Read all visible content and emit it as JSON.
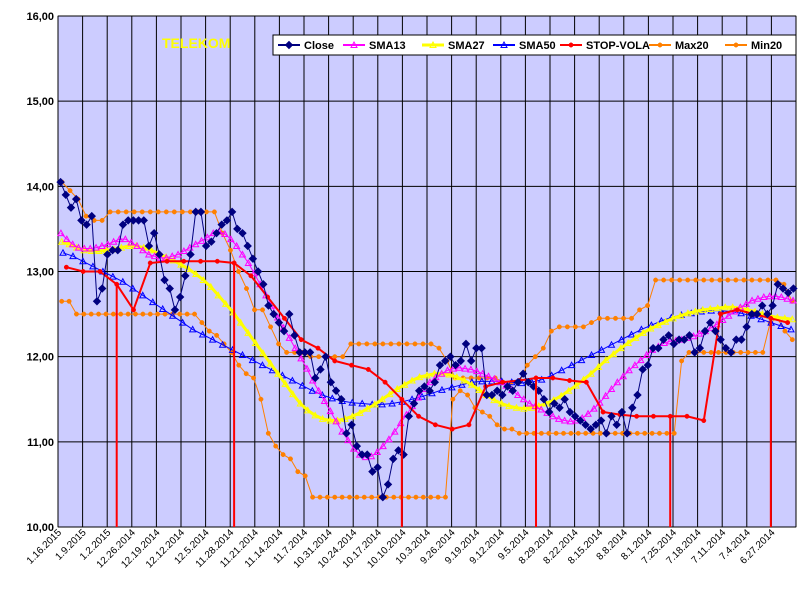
{
  "chart_data": {
    "type": "line",
    "title": "TELEKOM",
    "title_color": "#FFFF00",
    "plot_background": "#CCCCFF",
    "ylim": [
      10,
      16
    ],
    "y_ticks": [
      "10,00",
      "11,00",
      "12,00",
      "13,00",
      "14,00",
      "15,00",
      "16,00"
    ],
    "x_tick_labels": [
      "1.16.2015",
      "1.9.2015",
      "1.2.2015",
      "12.26.2014",
      "12.19.2014",
      "12.12.2014",
      "12.5.2014",
      "11.28.2014",
      "11.21.2014",
      "11.14.2014",
      "11.7.2014",
      "10.31.2014",
      "10.24.2014",
      "10.17.2014",
      "10.10.2014",
      "10.3.2014",
      "9.26.2014",
      "9.19.2014",
      "9.12.2014",
      "9.5.2014",
      "8.29.2014",
      "8.22.2014",
      "8.15.2014",
      "8.8.2014",
      "8.1.2014",
      "7.25.2014",
      "7.18.2014",
      "7.11.2014",
      "7.4.2014",
      "6.27.2014"
    ],
    "grid": true,
    "legend_position": "top-right",
    "series": [
      {
        "name": "Close",
        "color": "#000080",
        "marker": "diamond",
        "width": 1,
        "values": [
          14.05,
          13.9,
          13.75,
          13.85,
          13.6,
          13.55,
          13.65,
          12.65,
          12.8,
          13.2,
          13.25,
          13.25,
          13.55,
          13.6,
          13.6,
          13.6,
          13.6,
          13.3,
          13.45,
          13.2,
          12.9,
          12.8,
          12.55,
          12.7,
          12.95,
          13.2,
          13.7,
          13.7,
          13.3,
          13.35,
          13.45,
          13.55,
          13.6,
          13.7,
          13.5,
          13.45,
          13.3,
          13.15,
          13.0,
          12.85,
          12.6,
          12.5,
          12.4,
          12.3,
          12.5,
          12.25,
          12.05,
          12.05,
          12.05,
          11.75,
          11.85,
          12.0,
          11.7,
          11.6,
          11.5,
          11.1,
          11.2,
          10.95,
          10.85,
          10.85,
          10.65,
          10.7,
          10.35,
          10.5,
          10.8,
          10.9,
          10.85,
          11.3,
          11.45,
          11.6,
          11.65,
          11.6,
          11.7,
          11.9,
          11.95,
          12.0,
          11.9,
          11.95,
          12.15,
          11.95,
          12.1,
          12.1,
          11.55,
          11.55,
          11.6,
          11.55,
          11.65,
          11.6,
          11.7,
          11.8,
          11.7,
          11.65,
          11.6,
          11.5,
          11.35,
          11.45,
          11.4,
          11.5,
          11.35,
          11.3,
          11.25,
          11.2,
          11.15,
          11.2,
          11.25,
          11.1,
          11.3,
          11.2,
          11.35,
          11.1,
          11.4,
          11.55,
          11.85,
          11.9,
          12.1,
          12.1,
          12.2,
          12.25,
          12.15,
          12.2,
          12.2,
          12.25,
          12.05,
          12.1,
          12.3,
          12.4,
          12.3,
          12.2,
          12.1,
          12.05,
          12.2,
          12.2,
          12.35,
          12.5,
          12.5,
          12.6,
          12.5,
          12.6,
          12.85,
          12.8,
          12.75,
          12.8
        ]
      },
      {
        "name": "SMA13",
        "color": "#FF00FF",
        "marker": "triangle",
        "width": 1,
        "values": [
          13.45,
          13.38,
          13.32,
          13.28,
          13.27,
          13.27,
          13.28,
          13.3,
          13.32,
          13.35,
          13.38,
          13.38,
          13.34,
          13.3,
          13.25,
          13.2,
          13.18,
          13.16,
          13.16,
          13.18,
          13.2,
          13.24,
          13.28,
          13.32,
          13.36,
          13.4,
          13.45,
          13.47,
          13.44,
          13.38,
          13.3,
          13.2,
          13.1,
          12.98,
          12.85,
          12.72,
          12.6,
          12.46,
          12.34,
          12.22,
          12.1,
          11.98,
          11.86,
          11.72,
          11.6,
          11.48,
          11.36,
          11.24,
          11.12,
          11.02,
          10.92,
          10.85,
          10.82,
          10.83,
          10.88,
          10.95,
          11.03,
          11.12,
          11.22,
          11.32,
          11.42,
          11.52,
          11.62,
          11.7,
          11.76,
          11.8,
          11.84,
          11.86,
          11.87,
          11.86,
          11.85,
          11.83,
          11.8,
          11.77,
          11.74,
          11.7,
          11.66,
          11.61,
          11.55,
          11.5,
          11.45,
          11.42,
          11.38,
          11.34,
          11.3,
          11.27,
          11.25,
          11.24,
          11.25,
          11.28,
          11.33,
          11.39,
          11.46,
          11.54,
          11.62,
          11.7,
          11.77,
          11.84,
          11.9,
          11.96,
          12.02,
          12.08,
          12.12,
          12.16,
          12.18,
          12.19,
          12.2,
          12.22,
          12.24,
          12.27,
          12.3,
          12.34,
          12.38,
          12.43,
          12.48,
          12.53,
          12.58,
          12.62,
          12.66,
          12.68,
          12.7,
          12.71,
          12.71,
          12.7,
          12.68,
          12.66
        ]
      },
      {
        "name": "SMA27",
        "color": "#FFFF00",
        "marker": "triangle",
        "width": 3,
        "values": [
          13.35,
          13.32,
          13.28,
          13.25,
          13.24,
          13.24,
          13.25,
          13.26,
          13.28,
          13.3,
          13.3,
          13.28,
          13.25,
          13.21,
          13.17,
          13.13,
          13.08,
          13.03,
          12.97,
          12.9,
          12.82,
          12.72,
          12.62,
          12.52,
          12.4,
          12.28,
          12.16,
          12.04,
          11.92,
          11.8,
          11.68,
          11.56,
          11.45,
          11.37,
          11.31,
          11.27,
          11.25,
          11.25,
          11.27,
          11.3,
          11.34,
          11.39,
          11.44,
          11.5,
          11.56,
          11.62,
          11.67,
          11.72,
          11.76,
          11.78,
          11.8,
          11.8,
          11.79,
          11.76,
          11.72,
          11.67,
          11.61,
          11.55,
          11.49,
          11.45,
          11.42,
          11.4,
          11.39,
          11.4,
          11.42,
          11.45,
          11.49,
          11.54,
          11.6,
          11.66,
          11.73,
          11.8,
          11.88,
          11.96,
          12.03,
          12.1,
          12.16,
          12.22,
          12.28,
          12.33,
          12.37,
          12.41,
          12.45,
          12.48,
          12.51,
          12.53,
          12.55,
          12.56,
          12.57,
          12.58,
          12.58,
          12.57,
          12.55,
          12.53,
          12.5,
          12.48,
          12.46,
          12.45,
          12.44
        ]
      },
      {
        "name": "SMA50",
        "color": "#0000FF",
        "marker": "triangle",
        "width": 1,
        "values": [
          13.22,
          13.18,
          13.12,
          13.06,
          13.0,
          12.94,
          12.88,
          12.8,
          12.72,
          12.64,
          12.56,
          12.48,
          12.4,
          12.32,
          12.26,
          12.2,
          12.14,
          12.08,
          12.02,
          11.96,
          11.9,
          11.84,
          11.78,
          11.72,
          11.66,
          11.6,
          11.55,
          11.51,
          11.48,
          11.46,
          11.45,
          11.44,
          11.44,
          11.45,
          11.47,
          11.5,
          11.53,
          11.57,
          11.61,
          11.64,
          11.67,
          11.7,
          11.71,
          11.71,
          11.71,
          11.7,
          11.69,
          11.7,
          11.73,
          11.78,
          11.84,
          11.9,
          11.96,
          12.02,
          12.08,
          12.14,
          12.2,
          12.26,
          12.32,
          12.37,
          12.42,
          12.46,
          12.49,
          12.51,
          12.53,
          12.54,
          12.54,
          12.53,
          12.51,
          12.48,
          12.44,
          12.4,
          12.36,
          12.32
        ]
      },
      {
        "name": "STOP-VOLA",
        "color": "#FF0000",
        "marker": "circle",
        "width": 2,
        "values": [
          13.05,
          13.0,
          13.0,
          12.85,
          12.55,
          13.1,
          13.12,
          13.12,
          13.12,
          13.12,
          13.1,
          12.95,
          12.7,
          12.45,
          12.2,
          12.1,
          11.95,
          11.9,
          11.85,
          11.7,
          11.5,
          11.3,
          11.2,
          11.15,
          11.2,
          11.65,
          11.7,
          11.72,
          11.75,
          11.75,
          11.72,
          11.7,
          11.35,
          11.32,
          11.3,
          11.3,
          11.3,
          11.3,
          11.25,
          12.5,
          12.55,
          12.5,
          12.45,
          12.4
        ]
      },
      {
        "name": "Max20",
        "color": "#FF8000",
        "marker": "circle",
        "width": 1,
        "values": [
          14.05,
          13.95,
          13.85,
          13.65,
          13.6,
          13.6,
          13.7,
          13.7,
          13.7,
          13.7,
          13.7,
          13.7,
          13.7,
          13.7,
          13.7,
          13.7,
          13.7,
          13.7,
          13.7,
          13.7,
          13.45,
          13.25,
          13.0,
          12.8,
          12.55,
          12.55,
          12.35,
          12.15,
          12.05,
          12.05,
          12.05,
          12.0,
          12.0,
          12.0,
          12.0,
          12.0,
          12.15,
          12.15,
          12.15,
          12.15,
          12.15,
          12.15,
          12.15,
          12.15,
          12.15,
          12.15,
          12.15,
          12.1,
          11.95,
          11.75,
          11.75,
          11.75,
          11.75,
          11.75,
          11.75,
          11.7,
          11.7,
          11.7,
          11.9,
          12.0,
          12.1,
          12.3,
          12.35,
          12.35,
          12.35,
          12.35,
          12.4,
          12.45,
          12.45,
          12.45,
          12.45,
          12.45,
          12.55,
          12.6,
          12.9,
          12.9,
          12.9,
          12.9,
          12.9,
          12.9,
          12.9,
          12.9,
          12.9,
          12.9,
          12.9,
          12.9,
          12.9,
          12.9,
          12.9,
          12.9,
          12.85,
          12.65
        ]
      },
      {
        "name": "Min20",
        "color": "#FF8000",
        "marker": "circle",
        "width": 1,
        "values": [
          12.65,
          12.65,
          12.5,
          12.5,
          12.5,
          12.5,
          12.5,
          12.5,
          12.5,
          12.5,
          12.5,
          12.5,
          12.5,
          12.5,
          12.5,
          12.5,
          12.5,
          12.5,
          12.5,
          12.4,
          12.3,
          12.25,
          12.15,
          12.05,
          11.9,
          11.8,
          11.75,
          11.5,
          11.1,
          10.95,
          10.85,
          10.8,
          10.65,
          10.6,
          10.35,
          10.35,
          10.35,
          10.35,
          10.35,
          10.35,
          10.35,
          10.35,
          10.35,
          10.35,
          10.35,
          10.35,
          10.35,
          10.35,
          10.35,
          10.35,
          10.35,
          10.35,
          10.35,
          11.5,
          11.6,
          11.55,
          11.4,
          11.35,
          11.3,
          11.2,
          11.15,
          11.15,
          11.1,
          11.1,
          11.1,
          11.1,
          11.1,
          11.1,
          11.1,
          11.1,
          11.1,
          11.1,
          11.1,
          11.1,
          11.1,
          11.1,
          11.1,
          11.1,
          11.1,
          11.1,
          11.1,
          11.1,
          11.1,
          11.1,
          11.95,
          12.05,
          12.05,
          12.05,
          12.05,
          12.05,
          12.05,
          12.05,
          12.05,
          12.05,
          12.05,
          12.05,
          12.4,
          12.45,
          12.3,
          12.2
        ]
      }
    ]
  }
}
